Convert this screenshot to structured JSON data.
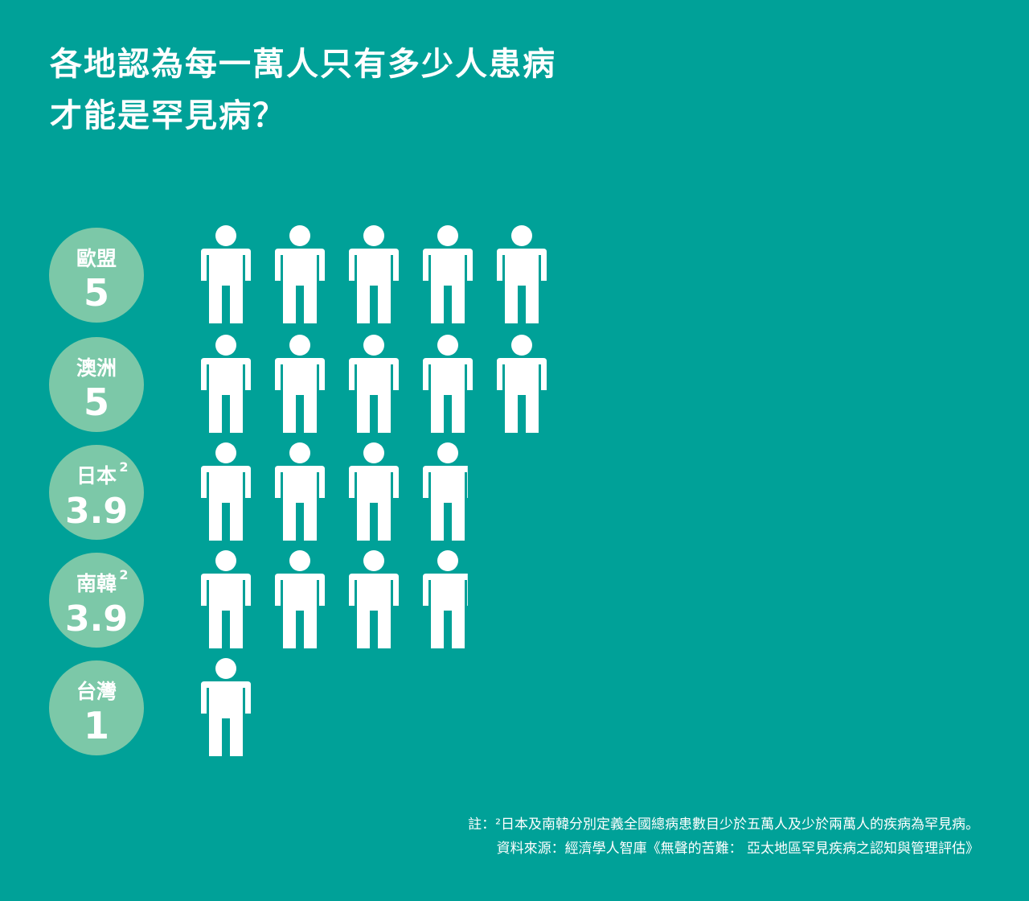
{
  "title": {
    "line1": "各地認為每一萬人只有多少人患病",
    "line2": "才能是罕見病？"
  },
  "colors": {
    "background": "#00a198",
    "badge": "#7cc8a8",
    "figure": "#ffffff"
  },
  "chart_data": {
    "type": "bar",
    "icon": "person-icon",
    "categories": [
      "歐盟",
      "澳洲",
      "日本",
      "南韓",
      "台灣"
    ],
    "values": [
      5,
      5,
      3.9,
      3.9,
      1
    ],
    "value_labels": [
      "5",
      "5",
      "3.9",
      "3.9",
      "1"
    ],
    "superscripts": [
      "",
      "",
      "2",
      "2",
      ""
    ],
    "title": "各地認為每一萬人只有多少人患病才能是罕見病？"
  },
  "footnotes": {
    "note": "註：²日本及南韓分別定義全國總病患數目少於五萬人及少於兩萬人的疾病為罕見病。",
    "source": "資料來源：經濟學人智庫《無聲的苦難： 亞太地區罕見疾病之認知與管理評估》"
  }
}
